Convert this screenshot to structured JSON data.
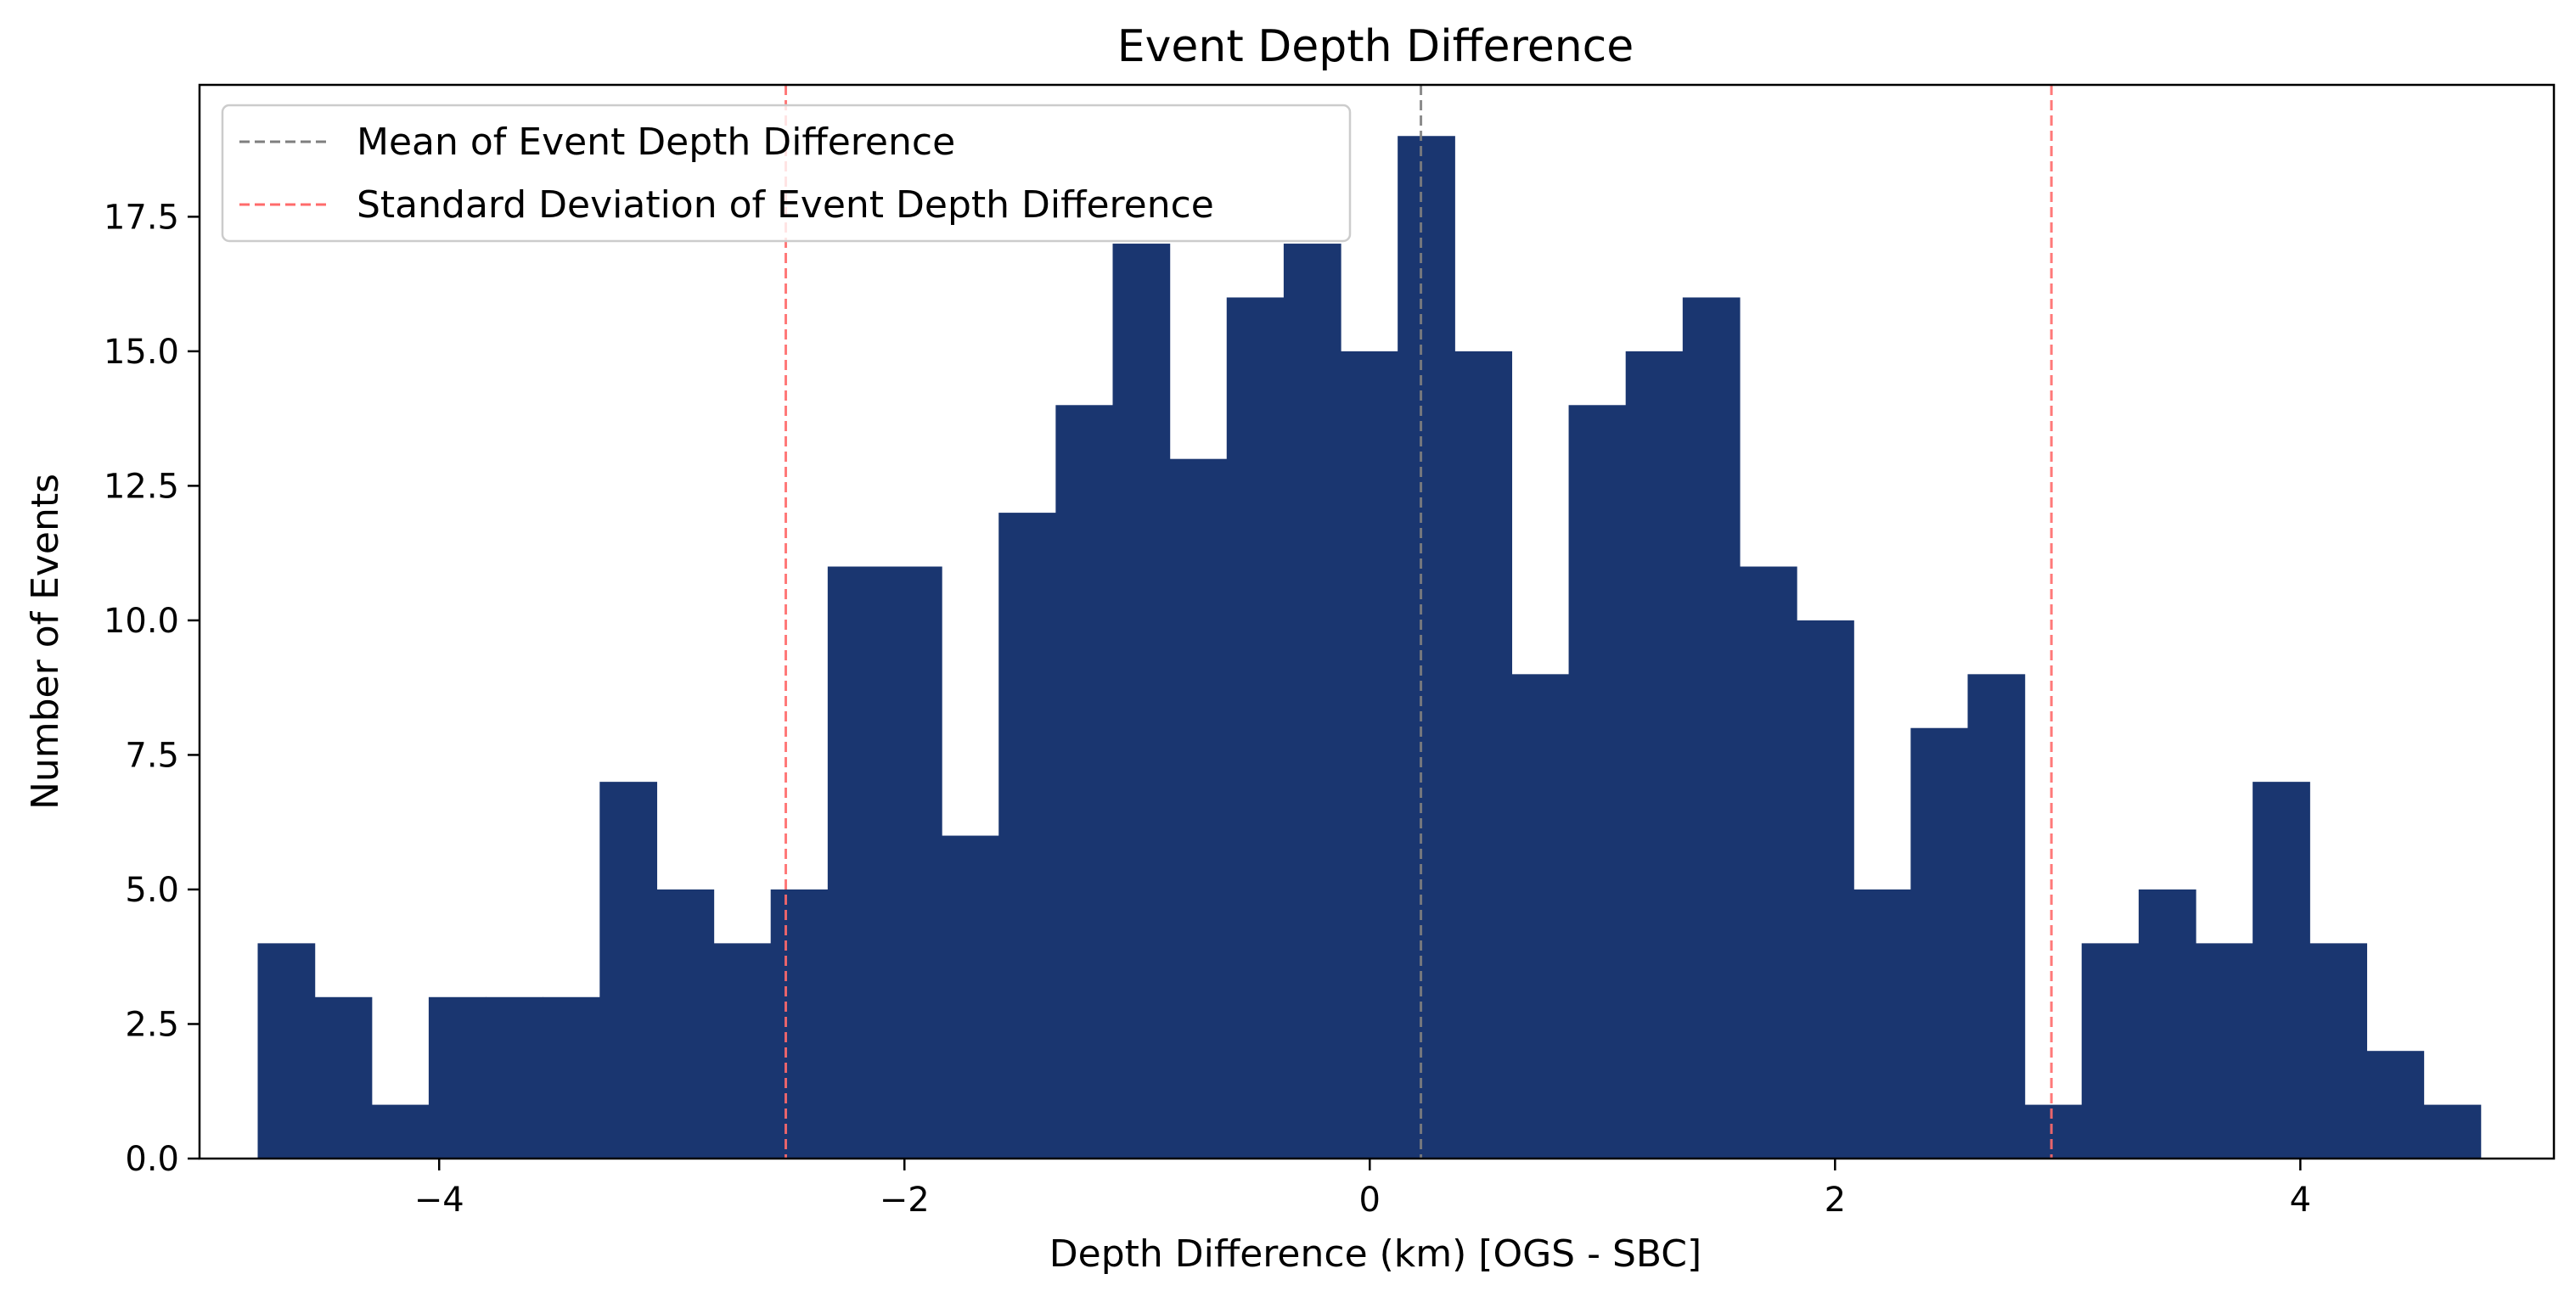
{
  "chart_data": {
    "type": "bar",
    "title": "Event Depth Difference",
    "xlabel": "Depth Difference (km) [OGS - SBC]",
    "ylabel": "Number of Events",
    "xlim": [
      -5.03,
      5.09
    ],
    "ylim": [
      0,
      19.95
    ],
    "xticks": [
      -4,
      -2,
      0,
      2,
      4
    ],
    "xtick_labels": [
      "−4",
      "−2",
      "0",
      "2",
      "4"
    ],
    "yticks": [
      0,
      2.5,
      5,
      7.5,
      10,
      12.5,
      15,
      17.5
    ],
    "ytick_labels": [
      "0.0",
      "2.5",
      "5.0",
      "7.5",
      "10.0",
      "12.5",
      "15.0",
      "17.5"
    ],
    "bin_edges": [
      -4.78,
      -4.535,
      -4.29,
      -4.045,
      -3.8,
      -3.555,
      -3.31,
      -3.065,
      -2.82,
      -2.575,
      -2.33,
      -2.085,
      -1.84,
      -1.595,
      -1.35,
      -1.105,
      -0.86,
      -0.615,
      -0.37,
      -0.125,
      0.12,
      0.365,
      0.61,
      0.855,
      1.1,
      1.345,
      1.59,
      1.835,
      2.08,
      2.325,
      2.57,
      2.815,
      3.06,
      3.305,
      3.55,
      3.795,
      4.04,
      4.285,
      4.53,
      4.775
    ],
    "values": [
      4,
      3,
      1,
      3,
      3,
      3,
      7,
      5,
      4,
      5,
      11,
      11,
      6,
      12,
      14,
      17,
      13,
      16,
      17,
      15,
      19,
      15,
      9,
      14,
      15,
      16,
      11,
      10,
      5,
      8,
      9,
      1,
      4,
      5,
      4,
      7,
      4,
      2,
      1
    ],
    "bar_color": "#1a3670",
    "mean_line": {
      "x": 0.22,
      "label": "Mean of Event Depth Difference",
      "color": "#7f7f7f"
    },
    "std_lines": {
      "x": [
        -2.51,
        2.93
      ],
      "label": "Standard Deviation of Event Depth Difference",
      "color": "#ff6b6b"
    },
    "legend_position": "upper-left",
    "grid": false
  }
}
